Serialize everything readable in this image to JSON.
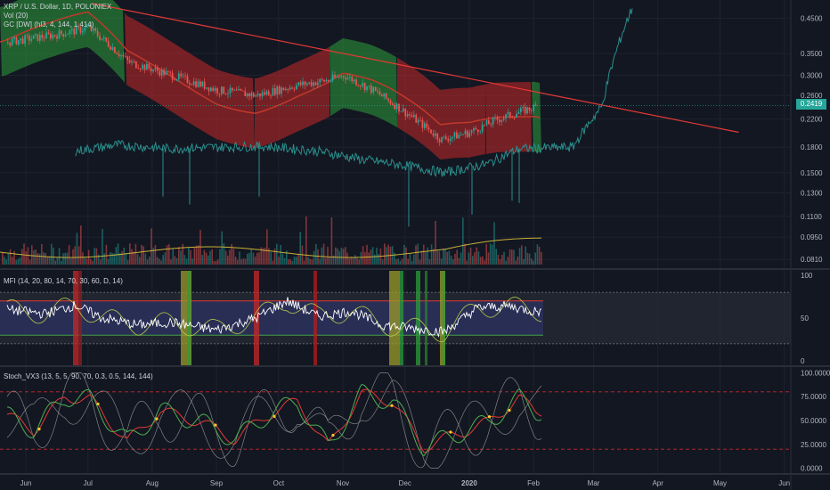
{
  "header": {
    "symbol": "XRP / U.S. Dollar, 1D, POLONIEX",
    "vol_label": "Vol (20)",
    "gc_label": "GC [DW] (hl3, 4, 144, 1.414)",
    "mfi_label": "MFI (14, 20, 80, 14, 70, 30, 60, D, 14)",
    "stoch_label": "Stoch_VX3 (13, 5, 5, 90, 70, 0.3, 0.5, 144, 144)"
  },
  "colors": {
    "background": "#131722",
    "grid": "#1e2230",
    "candle_up": "#26a69a",
    "candle_down": "#ef5350",
    "trendline": "#e53935",
    "band_green": "#2e9e3a",
    "band_red": "#c62828",
    "mfi_line": "#ffffff",
    "mfi_alt": "#b8c94a",
    "stoch_fast": "#4caf50",
    "stoch_slow": "#e53935",
    "stoch_cloud": "#9e9e9e",
    "dots": "#ffca28"
  },
  "chart_data": [
    {
      "type": "line",
      "panel": "price",
      "title": "XRP / U.S. Dollar, 1D, POLONIEX",
      "y_scale": "log",
      "ylim": [
        0.0781,
        0.49
      ],
      "y_ticks": [
        "0.4500",
        "0.3500",
        "0.3000",
        "0.2600",
        "0.2200",
        "0.1800",
        "0.1500",
        "0.1300",
        "0.1100",
        "0.0950",
        "0.0810"
      ],
      "x_ticks": [
        "Jun",
        "Jul",
        "Aug",
        "Sep",
        "Oct",
        "Nov",
        "Dec",
        "2020",
        "Feb",
        "Mar",
        "Apr",
        "May",
        "Jun"
      ],
      "last_price": "0.2419",
      "series": [
        {
          "style": "price",
          "x": [
            "2019-05-23",
            "2019-06-15",
            "2019-07-01",
            "2019-07-20",
            "2019-08-10",
            "2019-09-01",
            "2019-09-20",
            "2019-10-10",
            "2019-10-25",
            "2019-11-01",
            "2019-11-15",
            "2019-12-01",
            "2019-12-18",
            "2020-01-01",
            "2020-01-15",
            "2020-02-02"
          ],
          "y": [
            0.38,
            0.4,
            0.42,
            0.33,
            0.3,
            0.27,
            0.26,
            0.28,
            0.29,
            0.3,
            0.27,
            0.23,
            0.19,
            0.2,
            0.22,
            0.24
          ]
        },
        {
          "style": "lower",
          "x": [
            "2019-06-25",
            "2019-07-15",
            "2019-08-10",
            "2019-09-01",
            "2019-09-25",
            "2019-10-20",
            "2019-11-10",
            "2019-12-01",
            "2019-12-20",
            "2020-01-10",
            "2020-01-25",
            "2020-02-20",
            "2020-03-05",
            "2020-03-20"
          ],
          "y": [
            0.175,
            0.183,
            0.178,
            0.18,
            0.181,
            0.175,
            0.165,
            0.158,
            0.15,
            0.16,
            0.178,
            0.18,
            0.24,
            0.49
          ]
        },
        {
          "style": "trendline",
          "x": [
            "2019-07-03",
            "2020-05-10"
          ],
          "y": [
            0.5,
            0.2
          ]
        }
      ]
    },
    {
      "type": "area",
      "panel": "mfi",
      "title": "MFI (14, 20, 80, 14, 70, 30, 60, D, 14)",
      "ylim": [
        -5,
        105
      ],
      "y_ticks": [
        "100",
        "50",
        "0"
      ],
      "bands": {
        "upper": 80,
        "lower": 20,
        "overbought": 70,
        "oversold": 30,
        "mid": 60
      },
      "series": [
        {
          "name": "MFI",
          "x": [
            "2019-05-23",
            "2019-06-10",
            "2019-06-25",
            "2019-07-08",
            "2019-07-25",
            "2019-08-10",
            "2019-09-01",
            "2019-09-20",
            "2019-10-05",
            "2019-10-20",
            "2019-11-05",
            "2019-11-20",
            "2019-12-05",
            "2019-12-20",
            "2020-01-05",
            "2020-01-20",
            "2020-02-01"
          ],
          "y": [
            60,
            55,
            65,
            50,
            42,
            45,
            36,
            50,
            70,
            52,
            58,
            42,
            38,
            34,
            62,
            64,
            58
          ]
        }
      ]
    },
    {
      "type": "line",
      "panel": "stoch",
      "title": "Stoch_VX3 (13, 5, 5, 90, 70, 0.3, 0.5, 144, 144)",
      "ylim": [
        -5,
        105
      ],
      "y_ticks": [
        "100.0000",
        "75.0000",
        "50.0000",
        "25.0000",
        "0.0000"
      ],
      "levels": [
        80,
        20
      ],
      "series": [
        {
          "name": "fast",
          "x": [
            "2019-05-23",
            "2019-06-05",
            "2019-06-20",
            "2019-07-02",
            "2019-07-20",
            "2019-08-05",
            "2019-08-25",
            "2019-09-10",
            "2019-09-25",
            "2019-10-10",
            "2019-10-25",
            "2019-11-10",
            "2019-11-25",
            "2019-12-10",
            "2019-12-25",
            "2020-01-10",
            "2020-01-25",
            "2020-02-02"
          ],
          "y": [
            55,
            40,
            75,
            72,
            28,
            60,
            48,
            30,
            55,
            70,
            22,
            78,
            70,
            22,
            35,
            48,
            73,
            60
          ]
        }
      ]
    }
  ]
}
